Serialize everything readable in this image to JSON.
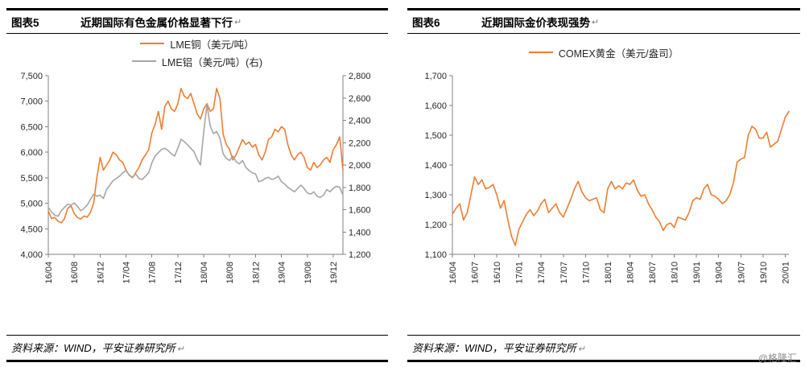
{
  "page": {
    "watermark": "@格隆汇",
    "paragraph_mark": "↵"
  },
  "chart_data": [
    {
      "type": "line",
      "figure_label": "图表5",
      "title": "近期国际有色金属价格显著下行",
      "source": "资料来源：WIND，平安证券研究所",
      "legend_position": "top",
      "grid": false,
      "points_per_month": 2,
      "x_ticks": [
        "16/04",
        "16/08",
        "16/12",
        "17/04",
        "17/08",
        "17/12",
        "18/04",
        "18/08",
        "18/12",
        "19/04",
        "19/08",
        "19/12"
      ],
      "x_tick_month_indices": [
        0,
        4,
        8,
        12,
        16,
        20,
        24,
        28,
        32,
        36,
        40,
        44
      ],
      "y_left": {
        "min": 4000,
        "max": 7500,
        "step": 500
      },
      "y_right": {
        "min": 1200,
        "max": 2800,
        "step": 200
      },
      "series": [
        {
          "name": "LME铜（美元/吨）",
          "axis": "left",
          "color": "#ED7D31",
          "values": [
            4850,
            4700,
            4720,
            4650,
            4620,
            4700,
            4900,
            4950,
            4800,
            4720,
            4690,
            4750,
            4730,
            4820,
            5000,
            5500,
            5900,
            5650,
            5750,
            5850,
            6000,
            5950,
            5850,
            5800,
            5650,
            5550,
            5500,
            5600,
            5700,
            5850,
            5950,
            6050,
            6380,
            6550,
            6800,
            6450,
            6900,
            7000,
            6850,
            6800,
            6950,
            7250,
            7100,
            7050,
            7150,
            6950,
            6750,
            6650,
            6850,
            6950,
            6800,
            6850,
            7250,
            7050,
            6350,
            6150,
            6050,
            5850,
            5950,
            6100,
            6250,
            6150,
            6200,
            6100,
            6150,
            5950,
            5850,
            6000,
            6250,
            6300,
            6450,
            6400,
            6500,
            6450,
            6150,
            5950,
            5850,
            5950,
            6000,
            5900,
            5700,
            5650,
            5800,
            5700,
            5750,
            5850,
            5900,
            5800,
            6050,
            6150,
            6300,
            5650
          ]
        },
        {
          "name": "LME铝（美元/吨）(右)",
          "axis": "right",
          "color": "#A6A6A6",
          "values": [
            1620,
            1580,
            1550,
            1540,
            1590,
            1620,
            1650,
            1640,
            1660,
            1630,
            1590,
            1610,
            1640,
            1690,
            1740,
            1720,
            1730,
            1700,
            1780,
            1820,
            1860,
            1880,
            1900,
            1930,
            1950,
            1910,
            1890,
            1920,
            1880,
            1870,
            1900,
            1930,
            2020,
            2080,
            2110,
            2140,
            2150,
            2130,
            2100,
            2080,
            2150,
            2230,
            2210,
            2180,
            2150,
            2120,
            2050,
            2000,
            2300,
            2540,
            2350,
            2280,
            2300,
            2240,
            2100,
            2060,
            2040,
            2080,
            2030,
            2010,
            2040,
            1980,
            1950,
            1930,
            1920,
            1850,
            1860,
            1880,
            1890,
            1870,
            1880,
            1900,
            1850,
            1830,
            1800,
            1780,
            1760,
            1790,
            1820,
            1790,
            1750,
            1740,
            1760,
            1720,
            1710,
            1730,
            1780,
            1760,
            1790,
            1810,
            1800,
            1730
          ]
        }
      ]
    },
    {
      "type": "line",
      "figure_label": "图表6",
      "title": "近期国际金价表现强势",
      "source": "资料来源：WIND，平安证券研究所",
      "legend_position": "top",
      "grid": false,
      "points_per_month": 2,
      "x_ticks": [
        "16/04",
        "16/07",
        "16/10",
        "17/01",
        "17/04",
        "17/07",
        "17/10",
        "18/01",
        "18/04",
        "18/07",
        "18/10",
        "19/01",
        "19/04",
        "19/07",
        "19/10",
        "20/01"
      ],
      "x_tick_month_indices": [
        0,
        3,
        6,
        9,
        12,
        15,
        18,
        21,
        24,
        27,
        30,
        33,
        36,
        39,
        42,
        45
      ],
      "y": {
        "min": 1100,
        "max": 1700,
        "step": 100
      },
      "series": [
        {
          "name": "COMEX黄金（美元/盎司）",
          "axis": "left",
          "color": "#ED7D31",
          "values": [
            1235,
            1255,
            1270,
            1215,
            1240,
            1300,
            1360,
            1335,
            1350,
            1320,
            1325,
            1335,
            1300,
            1255,
            1280,
            1215,
            1160,
            1130,
            1185,
            1210,
            1235,
            1250,
            1230,
            1245,
            1270,
            1285,
            1240,
            1255,
            1270,
            1240,
            1225,
            1255,
            1285,
            1320,
            1345,
            1310,
            1290,
            1280,
            1285,
            1290,
            1250,
            1240,
            1320,
            1345,
            1320,
            1330,
            1320,
            1340,
            1335,
            1350,
            1315,
            1295,
            1300,
            1270,
            1250,
            1225,
            1210,
            1180,
            1200,
            1205,
            1190,
            1225,
            1220,
            1215,
            1240,
            1280,
            1290,
            1285,
            1320,
            1335,
            1300,
            1295,
            1285,
            1270,
            1280,
            1300,
            1340,
            1410,
            1420,
            1425,
            1500,
            1530,
            1520,
            1490,
            1490,
            1510,
            1460,
            1470,
            1480,
            1520,
            1560,
            1580
          ]
        }
      ]
    }
  ]
}
